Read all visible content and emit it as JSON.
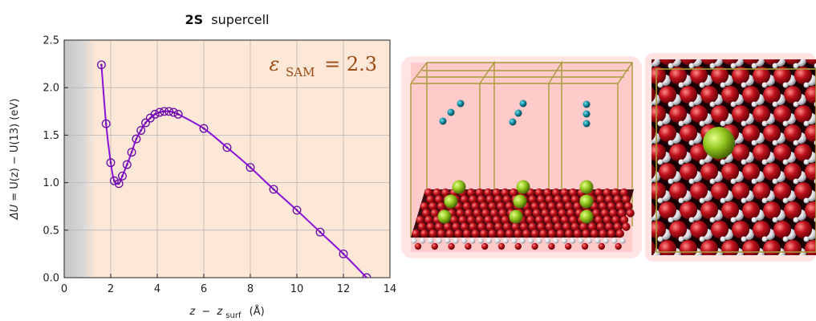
{
  "chart_data": {
    "type": "scatter",
    "title_bold": "2S",
    "title_rest": "supercell",
    "annotation": {
      "symbol": "ε",
      "subscript": "SAM",
      "relation": "= 2.3",
      "color": "#9a4a14"
    },
    "xlabel": {
      "var": "z",
      "minus": "−",
      "var2": "z",
      "sub": "surf",
      "unit": "(Å)"
    },
    "ylabel": {
      "delta": "ΔU",
      "eq": " = U(z) − U(13)  (eV)"
    },
    "xlim": [
      0,
      14
    ],
    "ylim": [
      0.0,
      2.5
    ],
    "xticks": [
      "0",
      "2",
      "4",
      "6",
      "8",
      "10",
      "12",
      "14"
    ],
    "yticks": [
      "0.0",
      "0.5",
      "1.0",
      "1.5",
      "2.0",
      "2.5"
    ],
    "grid": true,
    "line_color": "#8a12d8",
    "marker_color": "#6a0aa8",
    "background_region_color": "#fde7d6",
    "excluded_region_color": "#cfcfcf",
    "x": [
      1.6,
      1.8,
      2.0,
      2.15,
      2.35,
      2.5,
      2.7,
      2.9,
      3.1,
      3.3,
      3.5,
      3.7,
      3.9,
      4.1,
      4.3,
      4.5,
      4.7,
      4.9,
      6.0,
      7.0,
      8.0,
      9.0,
      10.0,
      11.0,
      12.0,
      13.0
    ],
    "y": [
      2.24,
      1.62,
      1.21,
      1.02,
      0.99,
      1.07,
      1.19,
      1.32,
      1.46,
      1.55,
      1.63,
      1.68,
      1.72,
      1.74,
      1.75,
      1.75,
      1.74,
      1.72,
      1.57,
      1.37,
      1.16,
      0.93,
      0.71,
      0.48,
      0.25,
      0.0
    ]
  },
  "illustration": {
    "left_panel": "side view of supercell with adsorbed molecules on oxide surface",
    "right_panel": "top view of surface with adsorbed molecule"
  }
}
